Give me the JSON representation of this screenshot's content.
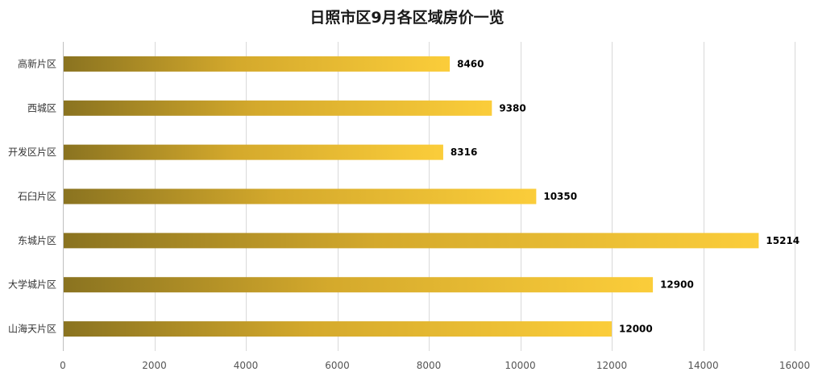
{
  "chart_data": {
    "type": "bar",
    "orientation": "horizontal",
    "title": "日照市区9月各区域房价一览",
    "categories": [
      "高新片区",
      "西城区",
      "开发区片区",
      "石臼片区",
      "东城片区",
      "大学城片区",
      "山海天片区"
    ],
    "values": [
      8460,
      9380,
      8316,
      10350,
      15214,
      12900,
      12000
    ],
    "value_labels": [
      "8460",
      "9380",
      "8316",
      "10350",
      "15214",
      "12900",
      "12000"
    ],
    "xlim": [
      0,
      16000
    ],
    "x_ticks": [
      0,
      2000,
      4000,
      6000,
      8000,
      10000,
      12000,
      14000,
      16000
    ],
    "x_tick_labels": [
      "0",
      "2000",
      "4000",
      "6000",
      "8000",
      "10000",
      "12000",
      "14000",
      "16000"
    ],
    "grid": true,
    "legend": "none",
    "xlabel": "",
    "ylabel": ""
  },
  "colors": {
    "bar_start": "#8a7320",
    "bar_end": "#fbcd3a",
    "grid": "#d9d9d9",
    "axis": "#bfbfbf"
  }
}
